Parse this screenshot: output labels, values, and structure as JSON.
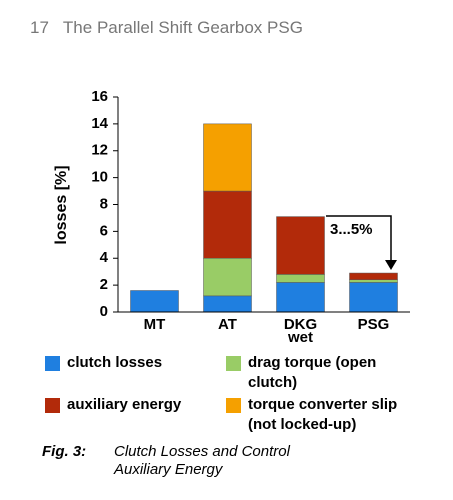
{
  "header": {
    "page_number": "17",
    "title": "The Parallel Shift Gearbox PSG"
  },
  "chart_data": {
    "type": "stacked_bar",
    "ylabel": "losses [%]",
    "categories": [
      "MT",
      "AT",
      "DKG wet",
      "PSG"
    ],
    "series": [
      {
        "name": "clutch losses",
        "color": "#1f7fe0",
        "values": [
          1.6,
          1.2,
          2.2,
          2.2
        ]
      },
      {
        "name": "drag torque (open clutch)",
        "color": "#99cc66",
        "values": [
          null,
          2.8,
          0.6,
          0.2
        ]
      },
      {
        "name": "auxiliary energy",
        "color": "#b22a0a",
        "values": [
          null,
          5.0,
          4.3,
          0.5
        ]
      },
      {
        "name": "torque converter slip (not locked-up)",
        "color": "#f5a000",
        "values": [
          null,
          5.0,
          null,
          null
        ]
      }
    ],
    "ylim": [
      0,
      16
    ],
    "yticks": [
      0,
      2,
      4,
      6,
      8,
      10,
      12,
      14,
      16
    ],
    "annotation": "3...5%"
  },
  "caption": {
    "label": "Fig. 3:",
    "text": "Clutch Losses and Control Auxiliary Energy"
  }
}
